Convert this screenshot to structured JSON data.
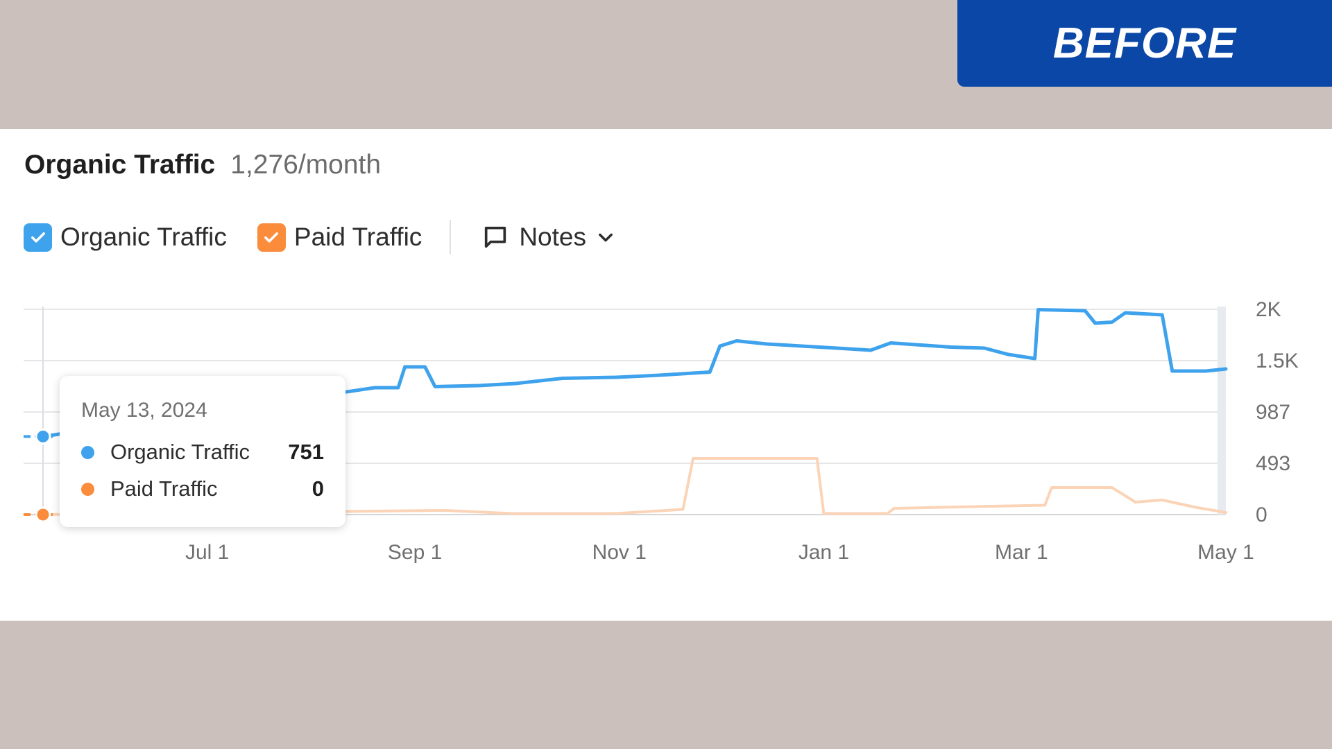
{
  "badge": {
    "label": "BEFORE"
  },
  "header": {
    "title": "Organic Traffic",
    "value": "1,276/month"
  },
  "controls": {
    "organic_label": "Organic Traffic",
    "paid_label": "Paid Traffic",
    "notes_label": "Notes"
  },
  "tooltip": {
    "date": "May 13, 2024",
    "rows": [
      {
        "name": "Organic Traffic",
        "value": "751"
      },
      {
        "name": "Paid Traffic",
        "value": "0"
      }
    ]
  },
  "colors": {
    "organic": "#3fa2ec",
    "paid": "#fa8c3c",
    "paid_faded": "#fbd4b8",
    "badge": "#0b47a6",
    "background": "#cbc0bc"
  },
  "chart_data": {
    "type": "line",
    "x_axis_type": "date",
    "xlim": [
      "2024-05-13",
      "2025-05-01"
    ],
    "ylim": [
      0,
      2000
    ],
    "ytick_labels": [
      "0",
      "493",
      "987",
      "1.5K",
      "2K"
    ],
    "ytick_values": [
      0,
      493,
      987,
      1480,
      1973
    ],
    "xtick_labels": [
      "Jul 1",
      "Sep 1",
      "Nov 1",
      "Jan 1",
      "Mar 1",
      "May 1"
    ],
    "xtick_values": [
      "2024-07-01",
      "2024-09-01",
      "2024-11-01",
      "2025-01-01",
      "2025-03-01",
      "2025-05-01"
    ],
    "grid": true,
    "series": [
      {
        "name": "Organic Traffic",
        "points": [
          [
            "2024-05-13",
            751
          ],
          [
            "2024-08-20",
            1220
          ],
          [
            "2024-08-27",
            1220
          ],
          [
            "2024-08-29",
            1420
          ],
          [
            "2024-09-04",
            1420
          ],
          [
            "2024-09-07",
            1230
          ],
          [
            "2024-09-20",
            1240
          ],
          [
            "2024-10-01",
            1260
          ],
          [
            "2024-10-15",
            1310
          ],
          [
            "2024-10-31",
            1320
          ],
          [
            "2024-11-13",
            1340
          ],
          [
            "2024-11-28",
            1370
          ],
          [
            "2024-12-01",
            1620
          ],
          [
            "2024-12-06",
            1670
          ],
          [
            "2024-12-15",
            1640
          ],
          [
            "2025-01-05",
            1600
          ],
          [
            "2025-01-15",
            1580
          ],
          [
            "2025-01-21",
            1650
          ],
          [
            "2025-02-08",
            1610
          ],
          [
            "2025-02-18",
            1600
          ],
          [
            "2025-02-25",
            1540
          ],
          [
            "2025-03-05",
            1500
          ],
          [
            "2025-03-06",
            1970
          ],
          [
            "2025-03-20",
            1960
          ],
          [
            "2025-03-23",
            1840
          ],
          [
            "2025-03-28",
            1850
          ],
          [
            "2025-04-01",
            1940
          ],
          [
            "2025-04-12",
            1920
          ],
          [
            "2025-04-15",
            1380
          ],
          [
            "2025-04-25",
            1380
          ],
          [
            "2025-05-01",
            1400
          ]
        ]
      },
      {
        "name": "Paid Traffic",
        "points": [
          [
            "2024-05-13",
            0
          ],
          [
            "2024-09-10",
            40
          ],
          [
            "2024-09-30",
            10
          ],
          [
            "2024-10-31",
            10
          ],
          [
            "2024-11-20",
            50
          ],
          [
            "2024-11-23",
            540
          ],
          [
            "2024-12-30",
            540
          ],
          [
            "2025-01-01",
            10
          ],
          [
            "2025-01-20",
            10
          ],
          [
            "2025-01-22",
            60
          ],
          [
            "2025-02-20",
            80
          ],
          [
            "2025-03-08",
            90
          ],
          [
            "2025-03-10",
            260
          ],
          [
            "2025-03-28",
            260
          ],
          [
            "2025-04-04",
            120
          ],
          [
            "2025-04-12",
            140
          ],
          [
            "2025-04-22",
            70
          ],
          [
            "2025-05-01",
            20
          ]
        ]
      }
    ]
  }
}
